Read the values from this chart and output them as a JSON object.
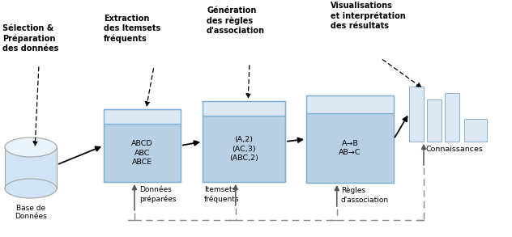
{
  "bg_color": "#ffffff",
  "box_fill": "#b8cfe4",
  "box_fill_top": "#dce9f5",
  "box_edge": "#7bafd4",
  "text_color": "#000000",
  "gray": "#888888",
  "dark_gray": "#555555",
  "labels": {
    "selection": "Sélection &\nPréparation\ndes données",
    "extraction": "Extraction\ndes Itemsets\nfréquents",
    "generation": "Génération\ndes règles\nd'association",
    "visualisation": "Visualisations\net interprétation\ndes résultats",
    "base": "Base de\nDonnées",
    "donnees": "Données\npréparées",
    "itemsets": "Itemsets\nfréquents",
    "regles": "Règles\nd'association",
    "connaissances": "Connaissances",
    "db_content": "ABCD\nABC\nABCE",
    "itemset_content": "(A,2)\n(AC,3)\n(ABC,2)",
    "rules_content": "A→B\nAB→C"
  }
}
